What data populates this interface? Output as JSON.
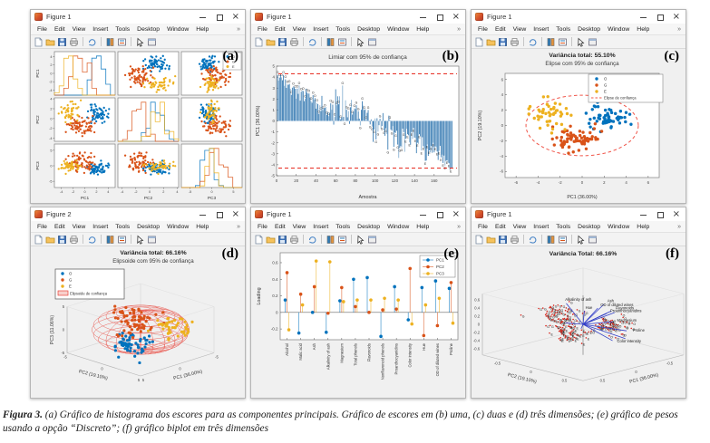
{
  "ui": {
    "menu_items": [
      "File",
      "Edit",
      "View",
      "Insert",
      "Tools",
      "Desktop",
      "Window",
      "Help"
    ],
    "menu_overflow_glyph": "»",
    "toolbar_icons": [
      "new-figure-icon",
      "open-file-icon",
      "save-figure-icon",
      "print-icon",
      "sep",
      "rotate-3d-icon",
      "sep",
      "insert-colorbar-icon",
      "insert-legend-icon",
      "sep",
      "edit-plot-icon",
      "dock-figure-icon"
    ],
    "window_controls": {
      "minimize": "minimize",
      "maximize": "maximize",
      "close": "×"
    }
  },
  "windows": [
    {
      "title": "Figure 1",
      "panel_label": "(a)"
    },
    {
      "title": "Figure 1",
      "panel_label": "(b)"
    },
    {
      "title": "Figure 1",
      "panel_label": "(c)"
    },
    {
      "title": "Figure 2",
      "panel_label": "(d)"
    },
    {
      "title": "Figure 1",
      "panel_label": "(e)"
    },
    {
      "title": "Figure 1",
      "panel_label": "(f)"
    }
  ],
  "caption": {
    "prefix": "Figura 3.",
    "text": " (a) Gráfico de histograma dos escores para as componentes principais. Gráfico de escores em (b) uma, (c) duas e (d) três dimensões; (e) gráfico de pesos usando a opção “Discreto”; (f) gráfico biplot em três dimensões"
  },
  "colors": {
    "group_O": "#0072BD",
    "group_G": "#D95319",
    "group_E": "#EDB120",
    "bar_blue": "#3076B0",
    "threshold_red": "#E8392F",
    "ellipse_red": "#F0564A",
    "ellipsoid_red": "#E8443A",
    "ellipsoid_patch": "#F8CFCB",
    "biplot_vector_blue": "#3340C8",
    "biplot_marker_red": "#D9261C"
  },
  "chart_data": [
    {
      "panel": "a",
      "type": "scatter-matrix",
      "variables": [
        "PC1",
        "PC2",
        "PC3"
      ],
      "axes": {
        "PC1": {
          "lim": [
            -5.2,
            5.2
          ],
          "ticks": [
            -4,
            -2,
            0,
            2,
            4
          ]
        },
        "PC2": {
          "lim": [
            -4.6,
            4.2
          ],
          "ticks": [
            -4,
            -2,
            0,
            2,
            4
          ]
        },
        "PC3": {
          "lim": [
            -7,
            7
          ],
          "ticks": [
            -5,
            0,
            5
          ]
        }
      },
      "diagonal": "histogram",
      "legend": {
        "labels": [
          "O",
          "G",
          "E"
        ],
        "position": "top-right"
      },
      "groups": [
        {
          "label": "O",
          "color": "#0072BD",
          "n": 59,
          "mean": [
            2.3,
            1.0,
            -1.0
          ],
          "std": [
            0.85,
            0.8,
            1.1
          ]
        },
        {
          "label": "G",
          "color": "#D95319",
          "n": 71,
          "mean": [
            -0.6,
            -1.5,
            0.9
          ],
          "std": [
            1.1,
            0.85,
            1.4
          ]
        },
        {
          "label": "E",
          "color": "#EDB120",
          "n": 48,
          "mean": [
            -2.7,
            1.3,
            -0.2
          ],
          "std": [
            0.85,
            1.0,
            1.0
          ]
        }
      ]
    },
    {
      "panel": "b",
      "type": "bar",
      "title": "Limiar com 95% de confiança",
      "xlabel": "Amostra",
      "ylabel": "PC1 (36.00%)",
      "xlim": [
        0,
        185
      ],
      "ylim": [
        -5,
        5
      ],
      "xticks": [
        0,
        20,
        40,
        60,
        80,
        100,
        120,
        140,
        160
      ],
      "yticks": [
        -5,
        -4,
        -3,
        -2,
        -1,
        0,
        1,
        2,
        3,
        4,
        5
      ],
      "threshold_upper": 4.3,
      "threshold_lower": -4.3,
      "segments": [
        {
          "label": "O",
          "n": 59,
          "from": 3.9,
          "to": 0.5,
          "noise": 0.5
        },
        {
          "label": "G",
          "n": 71,
          "from": 1.5,
          "to": -1.6,
          "noise": 0.95
        },
        {
          "label": "E",
          "n": 48,
          "from": -1.3,
          "to": -3.7,
          "noise": 0.55
        }
      ]
    },
    {
      "panel": "c",
      "type": "scatter-ellipse",
      "title": "Variância total: 55.10%",
      "subtitle": "Elipse com 95% de confiança",
      "xlabel": "PC1 (36.00%)",
      "ylabel": "PC2 (19.10%)",
      "xlim": [
        -7,
        7
      ],
      "ylim": [
        -6.8,
        6.8
      ],
      "xticks": [
        -6,
        -4,
        -2,
        0,
        2,
        4,
        6
      ],
      "yticks": [
        -6,
        -4,
        -2,
        0,
        2,
        4,
        6
      ],
      "ellipse": {
        "cx": 0,
        "cy": 0,
        "rx": 5.1,
        "ry": 3.95,
        "label": "Elipse de confiança"
      },
      "legend": [
        "O",
        "G",
        "E",
        "Elipse de confiança"
      ],
      "groups": [
        {
          "label": "O",
          "color": "#0072BD",
          "n": 59,
          "mean": [
            2.4,
            1.1
          ],
          "std": [
            0.85,
            0.8
          ]
        },
        {
          "label": "G",
          "color": "#D95319",
          "n": 71,
          "mean": [
            -0.5,
            -1.7
          ],
          "std": [
            1.1,
            0.8
          ]
        },
        {
          "label": "E",
          "color": "#EDB120",
          "n": 48,
          "mean": [
            -2.8,
            1.4
          ],
          "std": [
            0.85,
            1.0
          ]
        }
      ]
    },
    {
      "panel": "d",
      "type": "scatter3d-ellipsoid",
      "title": "Variância total: 66.16%",
      "subtitle": "Elipsoide com 95% de confiança",
      "xlabel": "PC1 (36.00%)",
      "ylabel": "PC2 (19.10%)",
      "zlabel": "PC3 (11.06%)",
      "xticks": [
        -5,
        0,
        5
      ],
      "yticks": [
        -5,
        0,
        5
      ],
      "zticks": [
        -5,
        0,
        5
      ],
      "lim": [
        -5,
        5
      ],
      "ellipsoid": {
        "rx": 4.7,
        "ry": 4.7,
        "rz": 4.2,
        "label": "Elipsoide de confiança"
      },
      "legend": [
        "O",
        "G",
        "E",
        "Elipsoide de confiança"
      ],
      "groups": [
        {
          "label": "O",
          "color": "#0072BD",
          "n": 59,
          "mean": [
            2.3,
            1.0,
            -1.6
          ],
          "std": [
            0.9,
            0.9,
            1.1
          ]
        },
        {
          "label": "G",
          "color": "#D95319",
          "n": 71,
          "mean": [
            -0.6,
            -1.5,
            1.0
          ],
          "std": [
            1.1,
            1.0,
            1.5
          ]
        },
        {
          "label": "E",
          "color": "#EDB120",
          "n": 48,
          "mean": [
            -2.7,
            1.3,
            -0.2
          ],
          "std": [
            0.9,
            1.0,
            1.0
          ]
        }
      ]
    },
    {
      "panel": "e",
      "type": "stem",
      "ylabel": "Loading",
      "ylim": [
        -0.33,
        0.72
      ],
      "yticks": [
        -0.2,
        0,
        0.2,
        0.4,
        0.6
      ],
      "categories": [
        "Alcohol",
        "Malic acid",
        "Ash",
        "Alkalinity of ash",
        "Magnesium",
        "Total phenols",
        "Flavonoids",
        "Nonflavonoid phenols",
        "Proanthocyanidins",
        "Color intensity",
        "Hue",
        "OD of diluted wines",
        "Proline"
      ],
      "legend_position": "top-right",
      "series": [
        {
          "name": "PC1",
          "color": "#0072BD",
          "values": [
            0.15,
            -0.25,
            0.0,
            -0.24,
            0.14,
            0.4,
            0.42,
            -0.29,
            0.31,
            -0.09,
            0.3,
            0.38,
            0.29
          ]
        },
        {
          "name": "PC2",
          "color": "#D95319",
          "values": [
            0.48,
            0.22,
            0.31,
            -0.01,
            0.3,
            0.07,
            0.0,
            0.03,
            0.04,
            0.53,
            -0.28,
            -0.16,
            0.36
          ]
        },
        {
          "name": "PC3",
          "color": "#EDB120",
          "values": [
            -0.21,
            0.09,
            0.62,
            0.61,
            0.13,
            0.15,
            0.15,
            0.17,
            0.15,
            -0.14,
            0.09,
            0.17,
            -0.13
          ]
        }
      ]
    },
    {
      "panel": "f",
      "type": "biplot3d",
      "title": "Variância Total: 66.16%",
      "xlabel": "PC1 (36.00%)",
      "ylabel": "PC2 (19.10%)",
      "zlabel": "PC3 (11.06%)",
      "xticks": [
        -0.5,
        0,
        0.5
      ],
      "yticks": [
        -0.5,
        0,
        0.5
      ],
      "zticks": [
        -0.6,
        -0.4,
        -0.2,
        0,
        0.2,
        0.4,
        0.6
      ],
      "lim": [
        -0.75,
        0.75
      ],
      "vectors": [
        {
          "name": "Alcohol",
          "v": [
            0.15,
            0.48,
            -0.21
          ]
        },
        {
          "name": "Malic acid",
          "v": [
            -0.25,
            0.22,
            0.09
          ]
        },
        {
          "name": "Ash",
          "v": [
            0.0,
            0.31,
            0.62
          ]
        },
        {
          "name": "Alkalinity of ash",
          "v": [
            -0.24,
            -0.01,
            0.61
          ]
        },
        {
          "name": "Magnesium",
          "v": [
            0.14,
            0.3,
            0.13
          ]
        },
        {
          "name": "Total phenols",
          "v": [
            0.4,
            0.07,
            0.15
          ]
        },
        {
          "name": "Flavonoids",
          "v": [
            0.42,
            0.0,
            0.15
          ]
        },
        {
          "name": "Nonflavonoid phenols",
          "v": [
            -0.29,
            0.03,
            0.17
          ]
        },
        {
          "name": "Proanthocyanidins",
          "v": [
            0.31,
            0.04,
            0.15
          ]
        },
        {
          "name": "Color intensity",
          "v": [
            -0.09,
            0.53,
            -0.14
          ]
        },
        {
          "name": "Hue",
          "v": [
            0.3,
            -0.28,
            0.09
          ]
        },
        {
          "name": "OD of diluted wines",
          "v": [
            0.38,
            -0.16,
            0.17
          ]
        },
        {
          "name": "Proline",
          "v": [
            0.29,
            0.36,
            -0.13
          ]
        }
      ],
      "points": [
        {
          "label": "O",
          "n": 59,
          "mean": [
            0.3,
            0.13,
            -0.13
          ],
          "std": [
            0.1,
            0.1,
            0.1
          ]
        },
        {
          "label": "G",
          "n": 71,
          "mean": [
            -0.08,
            -0.2,
            0.12
          ],
          "std": [
            0.13,
            0.13,
            0.14
          ]
        },
        {
          "label": "E",
          "n": 48,
          "mean": [
            -0.35,
            0.17,
            -0.03
          ],
          "std": [
            0.09,
            0.09,
            0.1
          ]
        }
      ]
    }
  ]
}
